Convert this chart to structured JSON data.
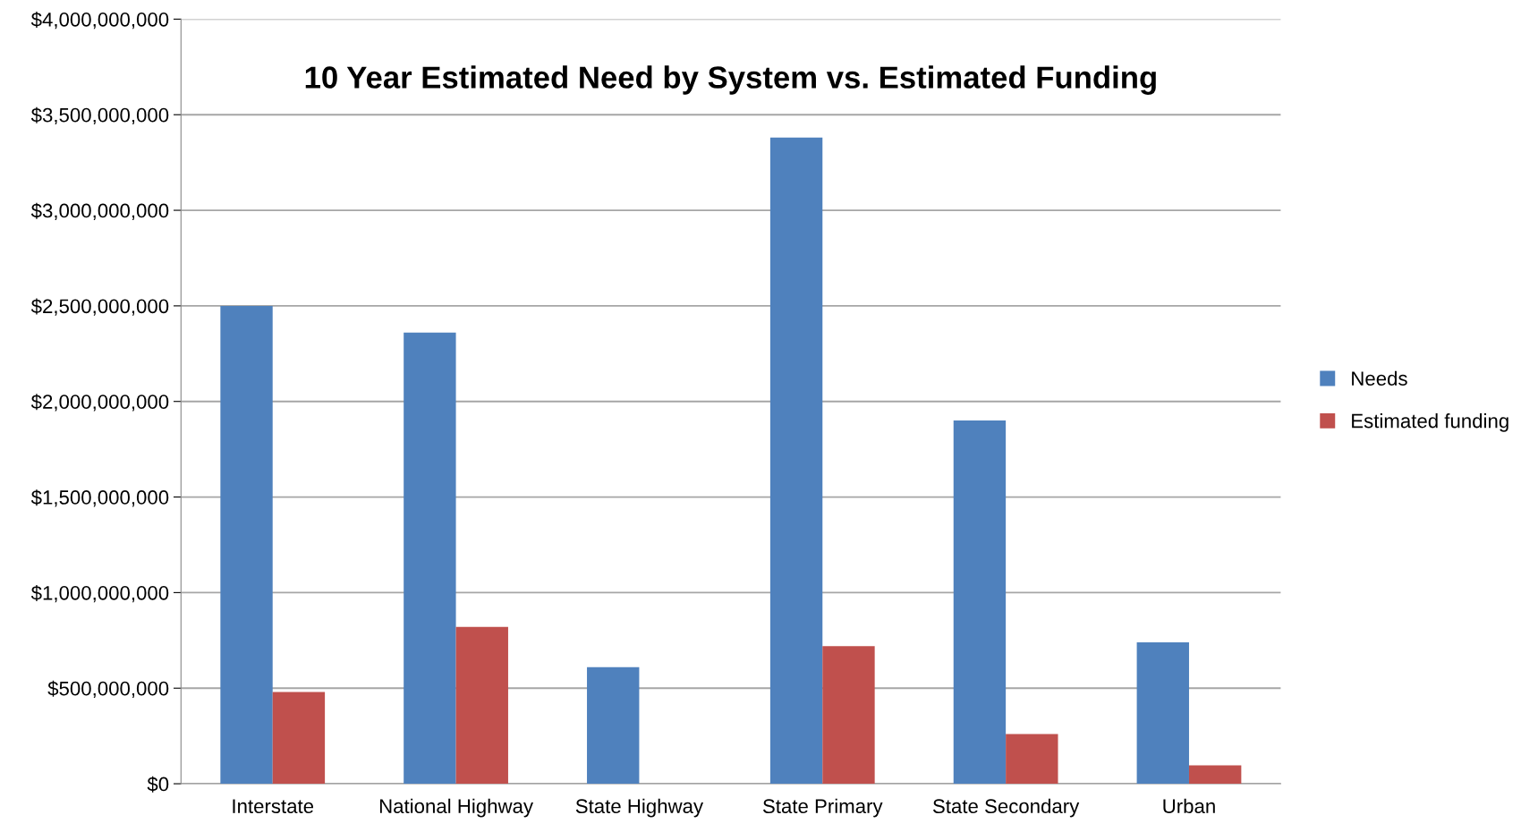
{
  "chart_data": {
    "type": "bar",
    "title": "10 Year Estimated Need by System vs. Estimated Funding",
    "categories": [
      "Interstate",
      "National Highway",
      "State Highway",
      "State Primary",
      "State Secondary",
      "Urban"
    ],
    "series": [
      {
        "name": "Needs",
        "color": "#4f81bd",
        "values": [
          2500000000,
          2360000000,
          610000000,
          3380000000,
          1900000000,
          740000000
        ]
      },
      {
        "name": "Estimated funding",
        "color": "#c0504d",
        "values": [
          480000000,
          820000000,
          0,
          720000000,
          260000000,
          96000000
        ]
      }
    ],
    "ylim": [
      0,
      4000000000
    ],
    "yticks": [
      {
        "value": 0,
        "label": "$0"
      },
      {
        "value": 500000000,
        "label": "$500,000,000"
      },
      {
        "value": 1000000000,
        "label": "$1,000,000,000"
      },
      {
        "value": 1500000000,
        "label": "$1,500,000,000"
      },
      {
        "value": 2000000000,
        "label": "$2,000,000,000"
      },
      {
        "value": 2500000000,
        "label": "$2,500,000,000"
      },
      {
        "value": 3000000000,
        "label": "$3,000,000,000"
      },
      {
        "value": 3500000000,
        "label": "$3,500,000,000"
      },
      {
        "value": 4000000000,
        "label": "$4,000,000,000"
      }
    ],
    "grid": "y",
    "legend": "right"
  }
}
